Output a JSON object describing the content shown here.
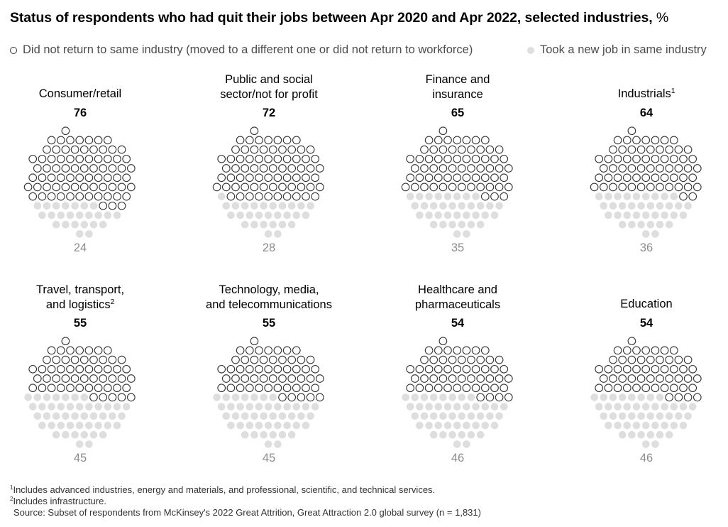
{
  "title": "Status of respondents who had quit their jobs between Apr 2020 and Apr 2022, selected industries,",
  "title_unit": "%",
  "legend": [
    {
      "label": "Did not return to same industry (moved to a different one or did not return to workforce)",
      "style": "outline"
    },
    {
      "label": "Took a new job in same industry",
      "style": "filled"
    }
  ],
  "colors": {
    "outline": "#333333",
    "filled": "#dedede",
    "secondary_text": "#8c8c8c"
  },
  "chart_data": {
    "type": "dot-matrix",
    "unit": "%",
    "series": [
      {
        "name": "Did not return to same industry (moved to a different one or did not return to workforce)",
        "style": "outline"
      },
      {
        "name": "Took a new job in same industry",
        "style": "filled"
      }
    ],
    "categories": [
      {
        "label": "Consumer/retail",
        "sup": "",
        "did_not_return": 76,
        "same_industry": 24
      },
      {
        "label": "Public and social\nsector/not for profit",
        "sup": "",
        "did_not_return": 72,
        "same_industry": 28
      },
      {
        "label": "Finance and\ninsurance",
        "sup": "",
        "did_not_return": 65,
        "same_industry": 35
      },
      {
        "label": "Industrials",
        "sup": "1",
        "did_not_return": 64,
        "same_industry": 36
      },
      {
        "label": "Travel, transport,\nand logistics",
        "sup": "2",
        "did_not_return": 55,
        "same_industry": 45
      },
      {
        "label": "Technology, media,\nand telecommunications",
        "sup": "",
        "did_not_return": 55,
        "same_industry": 45
      },
      {
        "label": "Healthcare and\npharmaceuticals",
        "sup": "",
        "did_not_return": 54,
        "same_industry": 46
      },
      {
        "label": "Education",
        "sup": "",
        "did_not_return": 54,
        "same_industry": 46
      }
    ]
  },
  "footnotes": [
    {
      "sup": "1",
      "text": "Includes advanced industries, energy and materials, and professional, scientific, and technical services."
    },
    {
      "sup": "2",
      "text": "Includes infrastructure."
    },
    {
      "sup": "",
      "text": "Source: Subset of respondents from McKinsey's 2022 Great Attrition, Great Attraction 2.0 global survey (n = 1,831)"
    }
  ]
}
